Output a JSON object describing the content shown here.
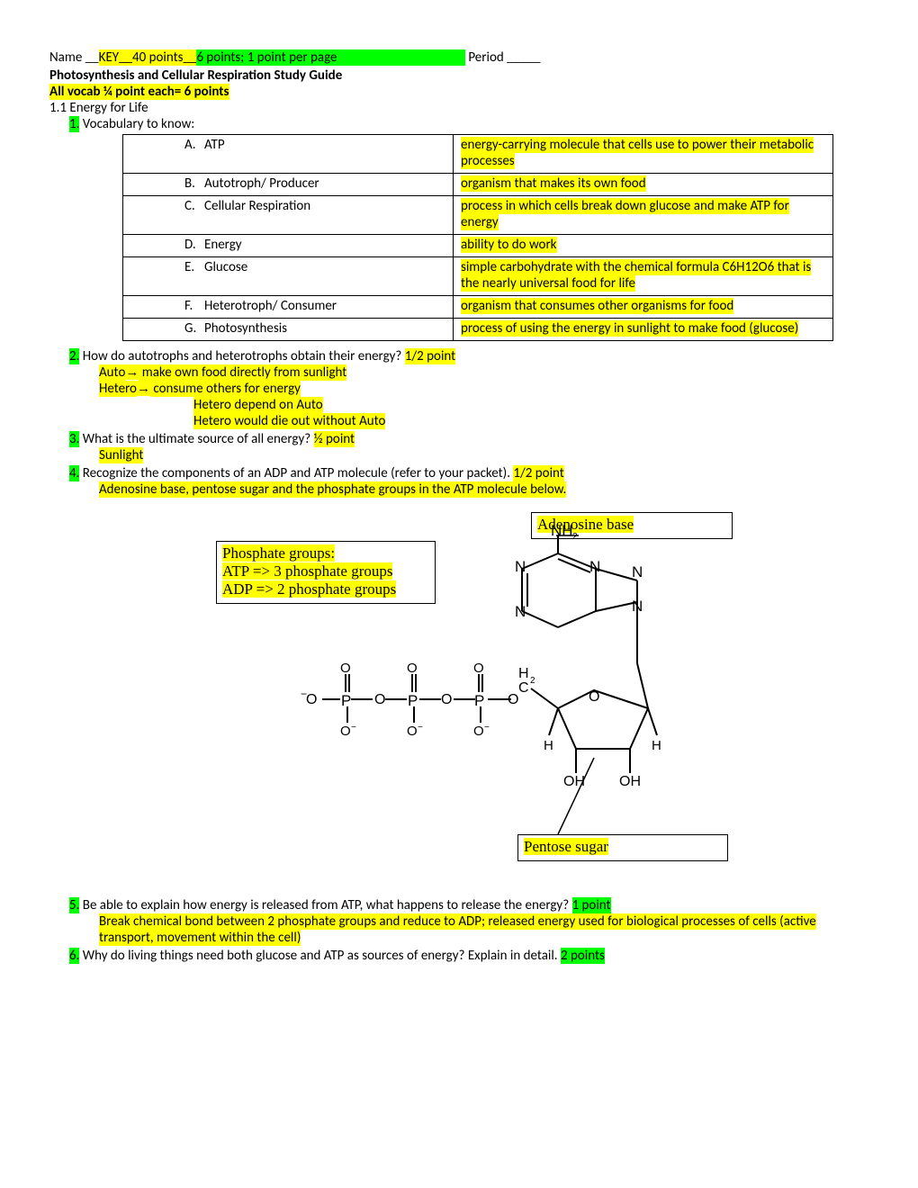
{
  "header": {
    "name_label": "Name __",
    "key_points": "KEY__40 points__",
    "per_page": "6 points; 1 point per page",
    "period_label": "  Period _____"
  },
  "title": "Photosynthesis and Cellular Respiration Study Guide",
  "vocab_note": "All vocab ¼ point each= 6 points",
  "section": "1.1  Energy for Life",
  "vocab_intro_num": "1.",
  "vocab_intro": " Vocabulary to know:",
  "vocab": [
    {
      "l": "A.",
      "t": "ATP",
      "d": "energy-carrying molecule that cells use to power their metabolic processes"
    },
    {
      "l": "B.",
      "t": "Autotroph/ Producer",
      "d": "organism that makes its own food"
    },
    {
      "l": "C.",
      "t": "Cellular Respiration",
      "d": "process in which cells break down glucose and make ATP for energy"
    },
    {
      "l": "D.",
      "t": "Energy",
      "d": "ability to do work"
    },
    {
      "l": "E.",
      "t": "Glucose",
      "d": "simple carbohydrate with the chemical formula C6H12O6 that is the nearly universal food for life"
    },
    {
      "l": "F.",
      "t": "Heterotroph/ Consumer",
      "d": "organism that consumes other organisms for food"
    },
    {
      "l": "G.",
      "t": "Photosynthesis",
      "d": "process of using the energy in sunlight to make food (glucose)"
    }
  ],
  "q2": {
    "num": "2.",
    "text": " How do autotrophs and heterotrophs obtain their energy? ",
    "pts": "1/2 point",
    "a1_pre": "Auto",
    "a1_arrow": "→",
    "a1_post": " make own food directly from sunlight",
    "a2_pre": "Hetero",
    "a2_arrow": "→",
    "a2_post": " consume others for energy",
    "a3": "Hetero depend on Auto",
    "a4": "Hetero would die out without Auto"
  },
  "q3": {
    "num": "3.",
    "text": " What is the ultimate source of all energy? ",
    "pts": "½ point",
    "ans": "Sunlight"
  },
  "q4": {
    "num": "4.",
    "text": " Recognize the components of an ADP and ATP molecule (refer to your packet). ",
    "pts": "1/2 point",
    "ans": "Adenosine base, pentose sugar and the phosphate groups in the ATP molecule below."
  },
  "diagram": {
    "adenosine": "Adenosine base",
    "phosphate_l1": "Phosphate groups:",
    "phosphate_l2": "ATP => 3 phosphate groups",
    "phosphate_l3": "ADP => 2 phosphate groups",
    "pentose": "Pentose sugar"
  },
  "q5": {
    "num": "5.",
    "text": " Be able to explain how energy is released from ATP, what happens to release the energy? ",
    "pts": "1 point",
    "ans": "Break chemical bond between 2 phosphate groups and reduce to ADP; released energy used for biological processes of cells (active transport, movement within the cell)"
  },
  "q6": {
    "num": "6.",
    "text": " Why do living things need both glucose and ATP as sources of energy? Explain in detail. ",
    "pts": "2 points"
  }
}
